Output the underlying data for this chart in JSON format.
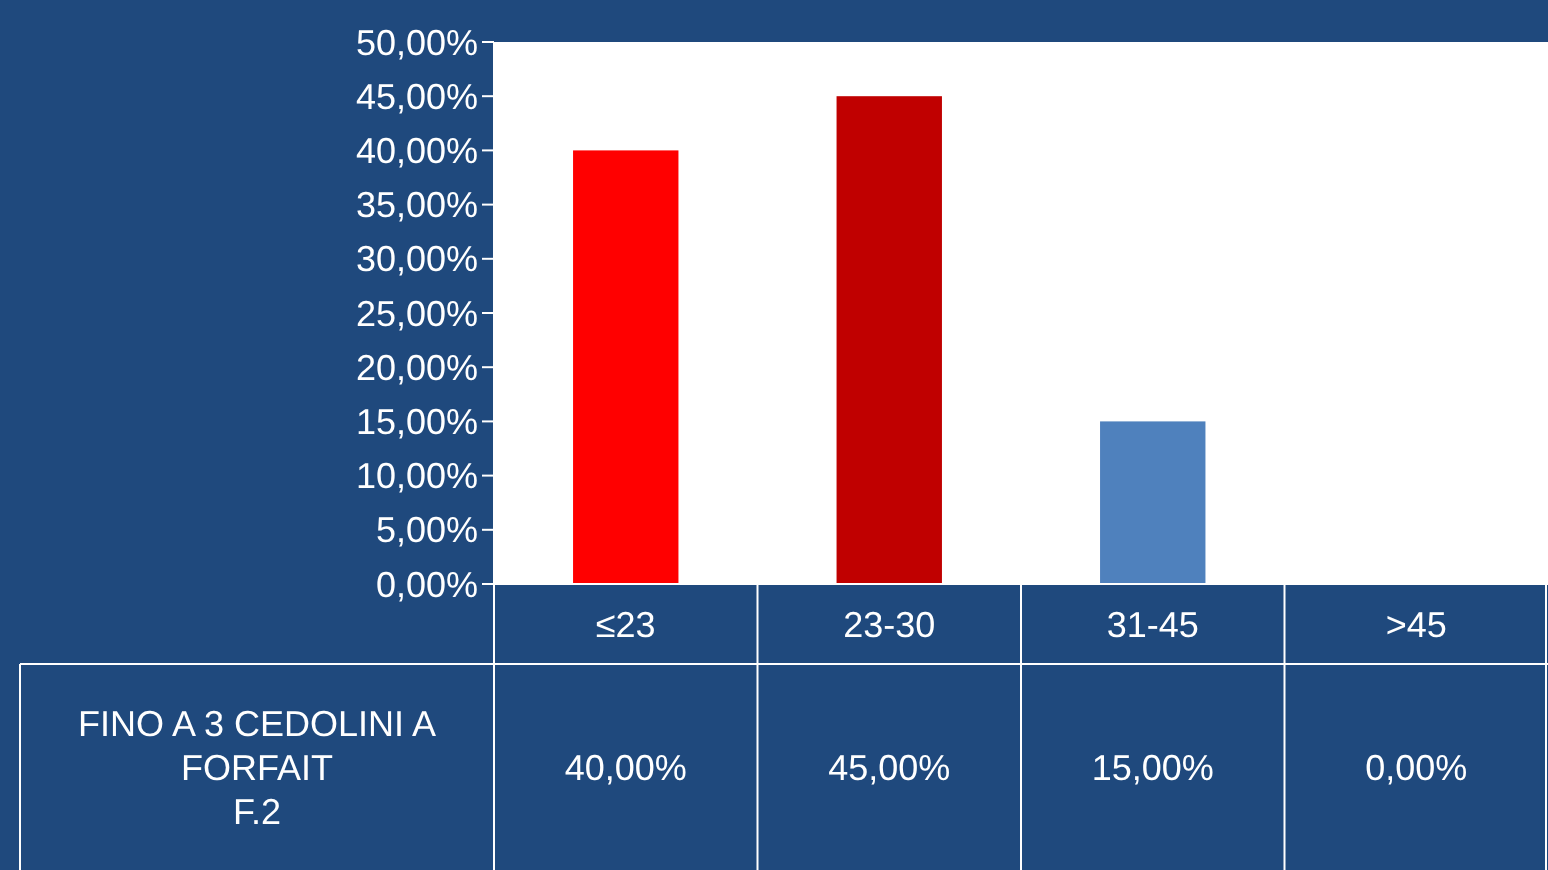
{
  "chart_data": {
    "type": "bar",
    "categories": [
      "≤23",
      "23-30",
      "31-45",
      ">45"
    ],
    "series": [
      {
        "name": "FINO A 3 CEDOLINI A\nFORFAIT\nF.2",
        "values": [
          40,
          45,
          15,
          0
        ],
        "colors": [
          "#ff0000",
          "#c00000",
          "#4f81bd",
          "#4f81bd"
        ],
        "value_labels": [
          "40,00%",
          "45,00%",
          "15,00%",
          "0,00%"
        ]
      }
    ],
    "ylim": [
      0,
      50
    ],
    "yticks": [
      {
        "value": 0,
        "label": "0,00%"
      },
      {
        "value": 5,
        "label": "5,00%"
      },
      {
        "value": 10,
        "label": "10,00%"
      },
      {
        "value": 15,
        "label": "15,00%"
      },
      {
        "value": 20,
        "label": "20,00%"
      },
      {
        "value": 25,
        "label": "25,00%"
      },
      {
        "value": 30,
        "label": "30,00%"
      },
      {
        "value": 35,
        "label": "35,00%"
      },
      {
        "value": 40,
        "label": "40,00%"
      },
      {
        "value": 45,
        "label": "45,00%"
      },
      {
        "value": 50,
        "label": "50,00%"
      }
    ],
    "grid": false
  }
}
